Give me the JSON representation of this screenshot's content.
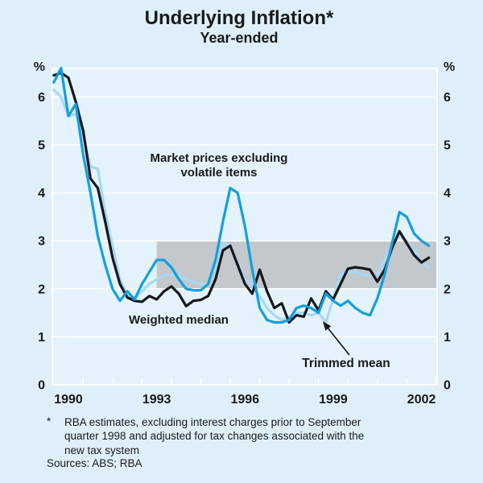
{
  "title": "Underlying Inflation*",
  "subtitle": "Year-ended",
  "y_axis": {
    "unit": "%",
    "ticks": [
      0,
      1,
      2,
      3,
      4,
      5,
      6
    ]
  },
  "x_axis": {
    "labels": [
      "1990",
      "1993",
      "1996",
      "1999",
      "2002"
    ],
    "label_years": [
      1990,
      1993,
      1996,
      1999,
      2002
    ]
  },
  "annotations": {
    "market_line1": "Market prices excluding",
    "market_line2": "volatile items",
    "weighted": "Weighted median",
    "trimmed": "Trimmed mean"
  },
  "footnote": {
    "symbol": "*",
    "lines": [
      "RBA estimates, excluding interest charges prior to September",
      "quarter 1998 and adjusted for tax changes associated with the",
      "new tax system"
    ]
  },
  "sources": "Sources: ABS; RBA",
  "colors": {
    "page_bg": "#dfeffa",
    "plot_bg": "#e4f2fb",
    "grid": "#ffffff",
    "band": "#c3c8cd",
    "black_line": "#17181c",
    "cyan_line": "#149fdf",
    "light_blue_line": "#a7d9f2",
    "text": "#1a1a1a"
  },
  "chart_data": {
    "type": "line",
    "title": "Underlying Inflation*",
    "subtitle": "Year-ended",
    "unit": "%",
    "x_start": 1989.5,
    "x_step": 0.25,
    "xlim": [
      1989.45,
      2002.55
    ],
    "ylim": [
      0,
      6.6
    ],
    "grid": true,
    "legend_position": "none (inline annotations)",
    "band": {
      "low": 2,
      "high": 3,
      "from_year": 1993,
      "note": "grey 2-3% band from 1993 to end"
    },
    "series": [
      {
        "name": "Trimmed mean",
        "color": "#a7d9f2",
        "values": [
          6.15,
          6.0,
          5.6,
          5.65,
          5.2,
          4.55,
          4.5,
          3.6,
          2.9,
          2.2,
          1.85,
          1.8,
          1.95,
          2.1,
          2.2,
          2.28,
          2.3,
          2.28,
          2.2,
          2.15,
          2.1,
          2.1,
          2.4,
          2.95,
          2.9,
          2.55,
          2.2,
          2.05,
          1.85,
          1.6,
          1.45,
          1.35,
          1.4,
          1.5,
          1.5,
          1.45,
          1.5,
          1.3,
          1.8,
          2.3,
          2.35,
          2.35,
          2.3,
          2.28,
          2.3,
          2.6,
          2.9,
          3.1,
          3.0,
          2.8,
          2.55,
          2.45
        ]
      },
      {
        "name": "Weighted median",
        "color": "#17181c",
        "values": [
          6.45,
          6.5,
          6.4,
          5.9,
          5.3,
          4.3,
          4.1,
          3.4,
          2.65,
          2.1,
          1.82,
          1.75,
          1.73,
          1.85,
          1.78,
          1.95,
          2.05,
          1.9,
          1.64,
          1.75,
          1.77,
          1.85,
          2.2,
          2.8,
          2.9,
          2.5,
          2.1,
          1.9,
          2.4,
          1.95,
          1.6,
          1.7,
          1.3,
          1.45,
          1.42,
          1.8,
          1.55,
          1.95,
          1.78,
          2.1,
          2.42,
          2.45,
          2.43,
          2.4,
          2.15,
          2.4,
          2.85,
          3.2,
          2.95,
          2.7,
          2.55,
          2.65
        ]
      },
      {
        "name": "Market prices excluding volatile items",
        "color": "#149fdf",
        "values": [
          6.3,
          6.6,
          5.6,
          5.85,
          4.8,
          4.0,
          3.1,
          2.5,
          2.0,
          1.75,
          1.95,
          1.78,
          2.1,
          2.35,
          2.6,
          2.6,
          2.45,
          2.2,
          2.0,
          1.97,
          1.97,
          2.1,
          2.6,
          3.4,
          4.1,
          4.0,
          3.3,
          2.4,
          1.6,
          1.35,
          1.3,
          1.3,
          1.35,
          1.6,
          1.65,
          1.6,
          1.5,
          1.9,
          1.75,
          1.65,
          1.75,
          1.6,
          1.5,
          1.45,
          1.8,
          2.3,
          2.95,
          3.6,
          3.5,
          3.15,
          3.0,
          2.9
        ]
      }
    ]
  }
}
